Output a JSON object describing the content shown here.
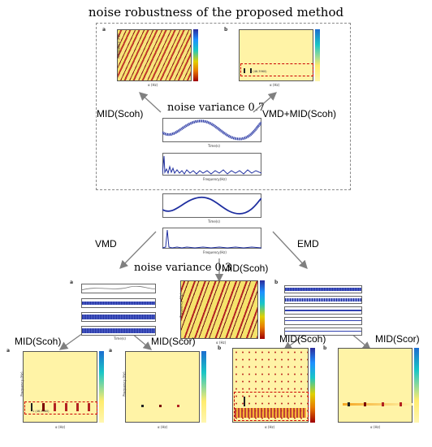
{
  "title": "noise robustness of the proposed method",
  "labels": {
    "noise_hi": "noise variance 0.7",
    "noise_lo": "noise variance 0.3",
    "mid_scoh": "MID(Scoh)",
    "vmd_mid_scoh": "VMD+MID(Scoh)",
    "vmd": "VMD",
    "emd": "EMD",
    "mid_scor": "MID(Scor)"
  },
  "panel_letters": {
    "a": "a",
    "b": "b"
  },
  "annotations": {
    "box1": "1 (46.3960)",
    "box2": "1 (46.3960)"
  },
  "axis": {
    "frequency_hz": "Frequency (Hz)",
    "frequency_plain": "Frequency(Hz)",
    "alpha_hz": "α (Hz)",
    "time_s": "Time(s)",
    "amp": "Amp (m/s²)"
  },
  "colors": {
    "arrow": "#808080",
    "signal": "#1f2fa0",
    "dash": "#8a8a8a"
  }
}
